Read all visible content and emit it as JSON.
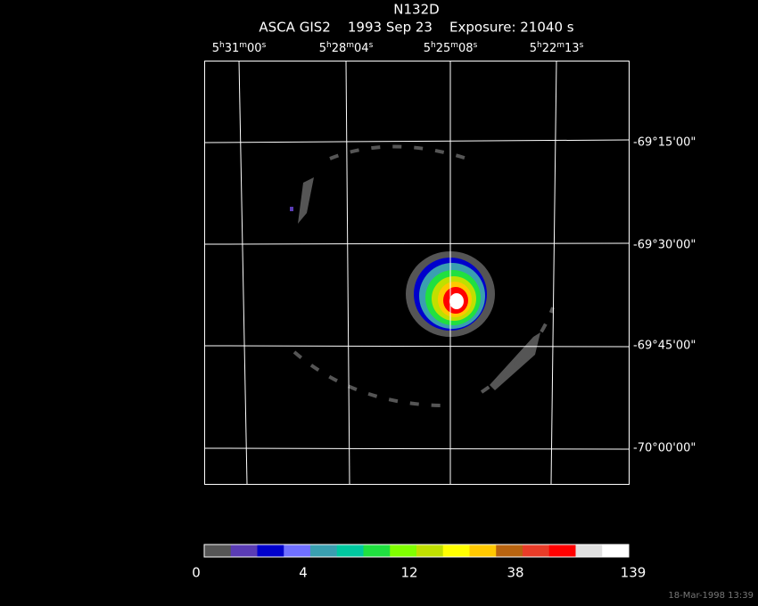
{
  "header": {
    "title": "N132D",
    "subtitle": "ASCA GIS2    1993 Sep 23    Exposure: 21040 s"
  },
  "ra_labels": [
    [
      "5",
      "h",
      "31",
      "m",
      "00",
      "s"
    ],
    [
      "5",
      "h",
      "28",
      "m",
      "04",
      "s"
    ],
    [
      "5",
      "h",
      "25",
      "m",
      "08",
      "s"
    ],
    [
      "5",
      "h",
      "22",
      "m",
      "13",
      "s"
    ]
  ],
  "dec_labels": [
    "-69°15'00\"",
    "-69°30'00\"",
    "-69°45'00\"",
    "-70°00'00\""
  ],
  "colorbar": {
    "ticks": [
      0,
      4,
      12,
      38,
      139
    ],
    "colors": [
      "#555555",
      "#5a3cb4",
      "#0000cc",
      "#7070ff",
      "#3a9fb0",
      "#00c8a0",
      "#20e040",
      "#80ff00",
      "#c0e000",
      "#ffff00",
      "#ffc800",
      "#b86410",
      "#e83c28",
      "#ff0000",
      "#e0e0e0",
      "#ffffff"
    ]
  },
  "footer": {
    "timestamp": "18-Mar-1998 13:39"
  }
}
